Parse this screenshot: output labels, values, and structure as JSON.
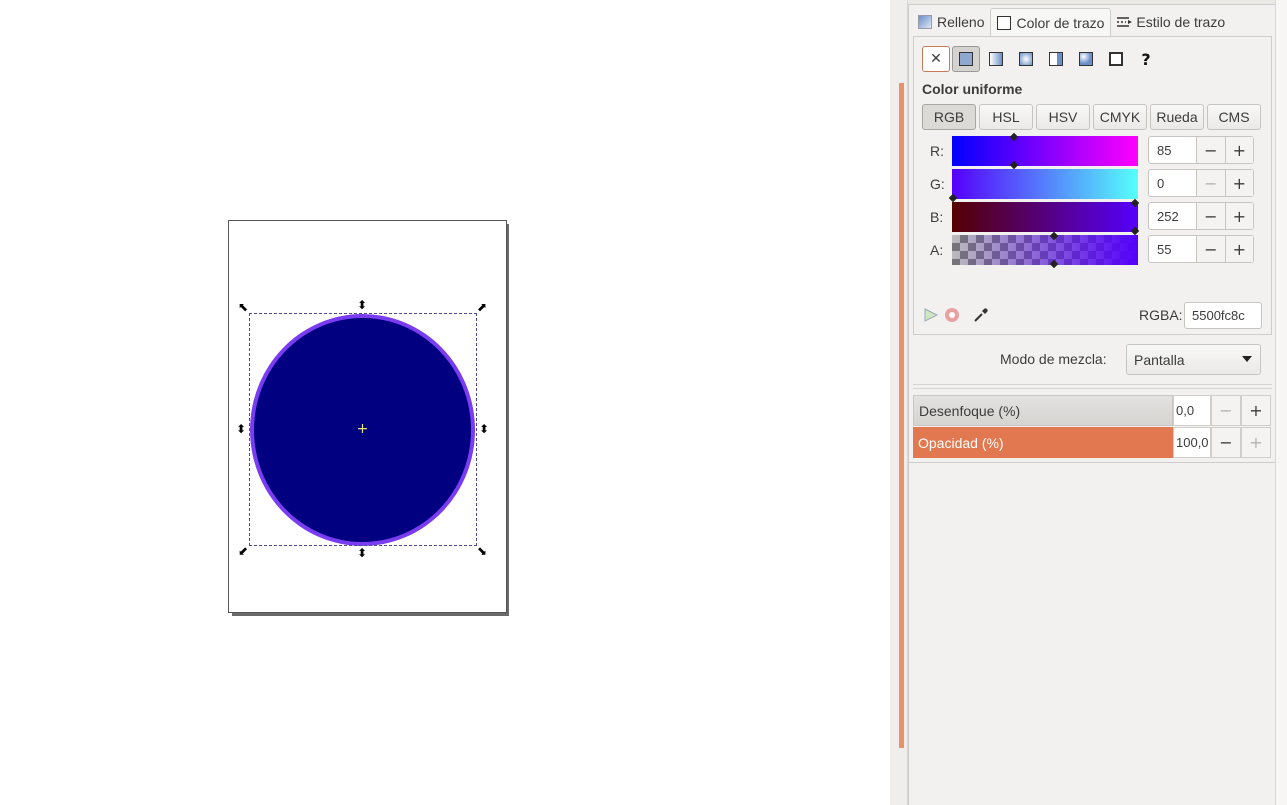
{
  "dock": {
    "tabs": [
      {
        "label": "Relleno",
        "icon": "fill-icon"
      },
      {
        "label": "Color de trazo",
        "icon": "stroke-paint-icon"
      },
      {
        "label": "Estilo de trazo",
        "icon": "stroke-style-icon"
      }
    ],
    "paint_types": [
      {
        "name": "no-paint-button",
        "glyph": "✕"
      },
      {
        "name": "flat-color-button"
      },
      {
        "name": "linear-gradient-button"
      },
      {
        "name": "radial-gradient-button"
      },
      {
        "name": "pattern-button"
      },
      {
        "name": "mesh-gradient-button"
      },
      {
        "name": "swatch-button"
      },
      {
        "name": "unset-paint-button",
        "glyph": "?"
      }
    ],
    "mode_title": "Color uniforme",
    "color_modes": [
      "RGB",
      "HSL",
      "HSV",
      "CMYK",
      "Rueda",
      "CMS"
    ],
    "channels": {
      "r": {
        "label": "R:",
        "value": "85"
      },
      "g": {
        "label": "G:",
        "value": "0"
      },
      "b": {
        "label": "B:",
        "value": "252"
      },
      "a": {
        "label": "A:",
        "value": "55"
      }
    },
    "minus": "−",
    "plus": "+",
    "rgba_label": "RGBA:",
    "rgba_value": "5500fc8c",
    "blend_label": "Modo de mezcla:",
    "blend_value": "Pantalla",
    "blur_label": "Desenfoque (%)",
    "blur_value": "0,0",
    "opacity_label": "Opacidad (%)",
    "opacity_value": "100,0"
  },
  "colors": {
    "stroke": "#5500fc",
    "fill": "#000080",
    "accent": "#e2784f",
    "selection": "#d5d3d0"
  }
}
